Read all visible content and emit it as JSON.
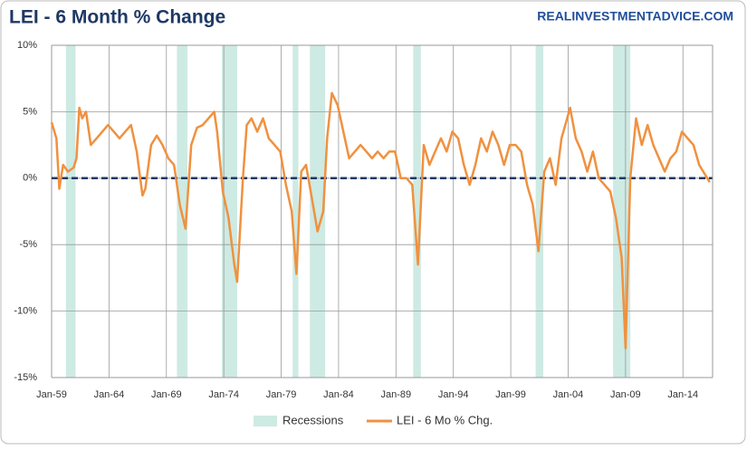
{
  "chart_data": {
    "type": "line",
    "title": "LEI - 6 Month % Change",
    "source": "REALINVESTMENTADVICE.COM",
    "x": [
      "1959-01",
      "1959-06",
      "1959-09",
      "1960-01",
      "1960-06",
      "1960-12",
      "1961-03",
      "1961-06",
      "1961-09",
      "1962-01",
      "1962-06",
      "1962-12",
      "1963-06",
      "1963-12",
      "1964-06",
      "1964-12",
      "1965-06",
      "1965-12",
      "1966-06",
      "1966-12",
      "1967-03",
      "1967-09",
      "1968-03",
      "1968-09",
      "1969-03",
      "1969-09",
      "1970-03",
      "1970-09",
      "1971-03",
      "1971-09",
      "1972-03",
      "1972-09",
      "1973-03",
      "1973-06",
      "1973-12",
      "1974-06",
      "1974-12",
      "1975-03",
      "1975-09",
      "1976-01",
      "1976-06",
      "1976-12",
      "1977-06",
      "1977-12",
      "1978-06",
      "1978-12",
      "1979-06",
      "1979-12",
      "1980-05",
      "1980-10",
      "1981-03",
      "1981-09",
      "1982-03",
      "1982-09",
      "1983-01",
      "1983-06",
      "1983-12",
      "1984-06",
      "1984-12",
      "1985-06",
      "1985-12",
      "1986-06",
      "1986-12",
      "1987-06",
      "1987-12",
      "1988-06",
      "1988-12",
      "1989-06",
      "1989-12",
      "1990-06",
      "1990-12",
      "1991-06",
      "1991-12",
      "1992-06",
      "1992-12",
      "1993-06",
      "1993-12",
      "1994-06",
      "1994-12",
      "1995-06",
      "1995-12",
      "1996-06",
      "1996-12",
      "1997-06",
      "1997-12",
      "1998-06",
      "1998-12",
      "1999-06",
      "1999-12",
      "2000-06",
      "2000-12",
      "2001-06",
      "2001-12",
      "2002-06",
      "2002-12",
      "2003-06",
      "2003-12",
      "2004-03",
      "2004-09",
      "2005-03",
      "2005-09",
      "2006-03",
      "2006-09",
      "2007-03",
      "2007-09",
      "2008-03",
      "2008-09",
      "2009-01",
      "2009-06",
      "2009-12",
      "2010-06",
      "2010-12",
      "2011-06",
      "2011-12",
      "2012-06",
      "2012-12",
      "2013-06",
      "2013-12",
      "2014-06",
      "2014-12",
      "2015-06",
      "2016-05"
    ],
    "series": [
      {
        "name": "LEI - 6 Mo % Chg.",
        "color": "#f0913f",
        "values": [
          4.2,
          3.0,
          -0.8,
          1.0,
          0.5,
          0.8,
          1.5,
          5.3,
          4.5,
          5.0,
          2.5,
          3.0,
          3.5,
          4.0,
          3.5,
          3.0,
          3.5,
          4.0,
          2.0,
          -1.3,
          -0.8,
          2.5,
          3.2,
          2.5,
          1.5,
          1.0,
          -2.0,
          -3.8,
          2.5,
          3.8,
          4.0,
          4.5,
          5.0,
          3.5,
          -1.0,
          -3.0,
          -6.5,
          -7.8,
          0.0,
          4.0,
          4.5,
          3.5,
          4.5,
          3.0,
          2.5,
          2.0,
          -0.5,
          -2.5,
          -7.2,
          0.5,
          1.0,
          -1.5,
          -4.0,
          -2.5,
          3.0,
          6.4,
          5.5,
          3.5,
          1.5,
          2.0,
          2.5,
          2.0,
          1.5,
          2.0,
          1.5,
          2.0,
          2.0,
          0.0,
          0.0,
          -0.5,
          -6.5,
          2.5,
          1.0,
          2.0,
          3.0,
          2.0,
          3.5,
          3.0,
          1.0,
          -0.5,
          1.0,
          3.0,
          2.0,
          3.5,
          2.5,
          1.0,
          2.5,
          2.5,
          2.0,
          -0.5,
          -2.0,
          -5.5,
          0.5,
          1.5,
          -0.5,
          3.0,
          4.5,
          5.3,
          3.0,
          2.0,
          0.5,
          2.0,
          0.0,
          -0.5,
          -1.0,
          -3.0,
          -6.0,
          -12.8,
          0.0,
          4.5,
          2.5,
          4.0,
          2.5,
          1.5,
          0.5,
          1.5,
          2.0,
          3.5,
          3.0,
          2.5,
          1.0,
          -0.3
        ]
      }
    ],
    "recessions": {
      "name": "Recessions",
      "color": "#cdeae3",
      "start": [
        "1960-04",
        "1969-12",
        "1973-11",
        "1980-01",
        "1981-07",
        "1990-07",
        "2001-03",
        "2007-12"
      ],
      "end": [
        "1961-02",
        "1970-11",
        "1975-03",
        "1980-07",
        "1982-11",
        "1991-03",
        "2001-11",
        "2009-06"
      ]
    },
    "reference_line": {
      "value": 0,
      "color": "#1f3864"
    },
    "xlim": [
      "1959-01",
      "2016-08"
    ],
    "xticks": [
      {
        "value": "1959-01",
        "label": "Jan-59"
      },
      {
        "value": "1964-01",
        "label": "Jan-64"
      },
      {
        "value": "1969-01",
        "label": "Jan-69"
      },
      {
        "value": "1974-01",
        "label": "Jan-74"
      },
      {
        "value": "1979-01",
        "label": "Jan-79"
      },
      {
        "value": "1984-01",
        "label": "Jan-84"
      },
      {
        "value": "1989-01",
        "label": "Jan-89"
      },
      {
        "value": "1994-01",
        "label": "Jan-94"
      },
      {
        "value": "1999-01",
        "label": "Jan-99"
      },
      {
        "value": "2004-01",
        "label": "Jan-04"
      },
      {
        "value": "2009-01",
        "label": "Jan-09"
      },
      {
        "value": "2014-01",
        "label": "Jan-14"
      }
    ],
    "ylim": [
      -15,
      10
    ],
    "yticks": [
      {
        "value": -15,
        "label": "-15%"
      },
      {
        "value": -10,
        "label": "-10%"
      },
      {
        "value": -5,
        "label": "-5%"
      },
      {
        "value": 0,
        "label": "0%"
      },
      {
        "value": 5,
        "label": "5%"
      },
      {
        "value": 10,
        "label": "10%"
      }
    ],
    "grid": true
  }
}
